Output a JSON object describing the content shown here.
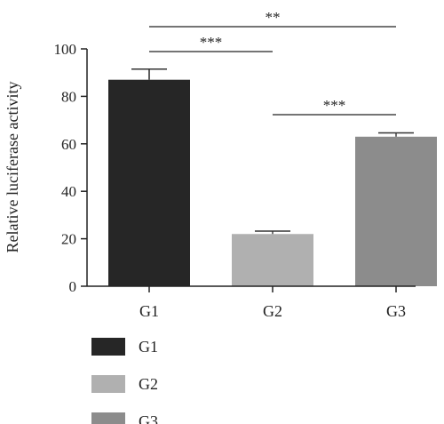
{
  "chart_data": {
    "type": "bar",
    "categories": [
      "G1",
      "G2",
      "G3"
    ],
    "values": [
      87,
      22,
      63
    ],
    "errors": [
      4.5,
      1.2,
      1.6
    ],
    "ylabel": "Relative luciferase activity",
    "xlabel": "",
    "ylim": [
      0,
      100
    ],
    "yticks": [
      "0",
      "20",
      "40",
      "60",
      "80",
      "100"
    ],
    "grid": false,
    "bar_colors": [
      "#262626",
      "#b0b0b0",
      "#8c8c8c"
    ],
    "legend": {
      "placement": "bottom-left",
      "entries": [
        "G1",
        "G2",
        "G3"
      ]
    },
    "significance": [
      {
        "from": 0,
        "to": 2,
        "label": "**"
      },
      {
        "from": 0,
        "to": 1,
        "label": "***"
      },
      {
        "from": 1,
        "to": 2,
        "label": "***"
      }
    ]
  }
}
